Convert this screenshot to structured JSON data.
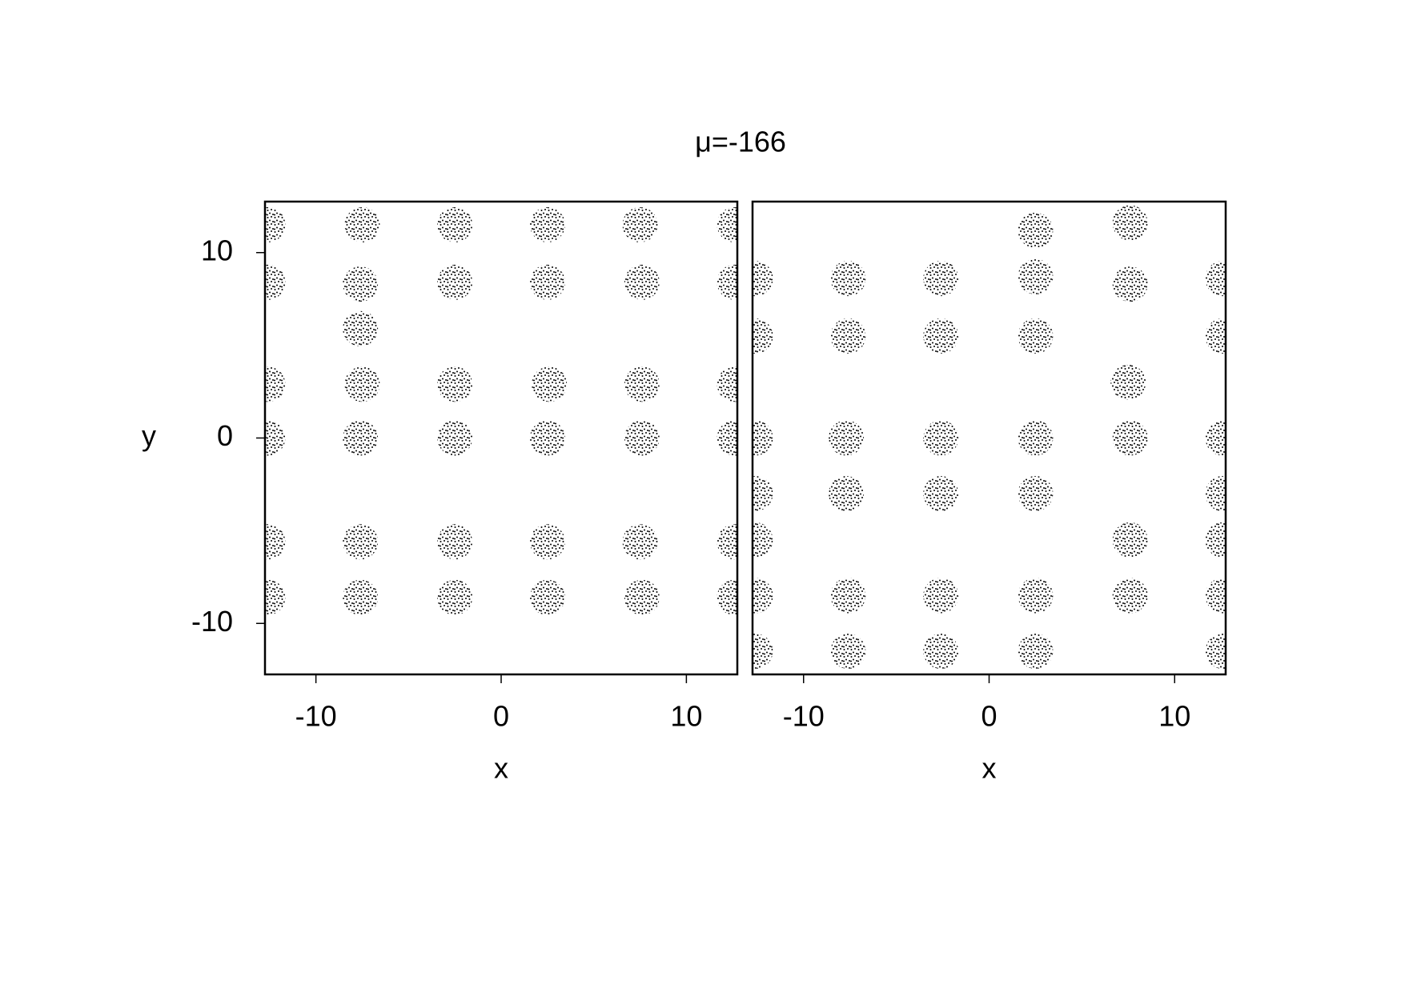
{
  "title": "μ=-166",
  "chart_data": [
    {
      "type": "scatter",
      "xlabel": "x",
      "ylabel": "y",
      "xlim": [
        -12.75,
        12.75
      ],
      "ylim": [
        -12.75,
        12.75
      ],
      "xticks": [
        -10,
        0,
        10
      ],
      "yticks": [
        -10,
        0,
        10
      ],
      "series": [
        {
          "color": "#9400d3",
          "x": [
            -12.6,
            -7.5,
            -2.5,
            2.5,
            7.5,
            12.6,
            -12.6,
            -2.5,
            2.5,
            7.6,
            12.6,
            -12.6,
            -7.5,
            -2.5,
            2.6,
            7.6,
            12.6,
            -12.6,
            -7.6,
            -2.5,
            2.5,
            7.6,
            12.6,
            -12.6,
            -7.6,
            -2.5,
            2.5,
            7.5,
            12.6,
            -12.6,
            -7.6,
            -2.5,
            2.5,
            7.6,
            12.6
          ],
          "y": [
            11.5,
            11.5,
            11.5,
            11.5,
            11.5,
            11.5,
            8.4,
            8.4,
            8.4,
            8.4,
            8.4,
            2.9,
            2.9,
            2.9,
            2.9,
            2.9,
            2.9,
            0,
            0,
            0,
            0,
            0,
            0,
            -5.6,
            -5.6,
            -5.6,
            -5.6,
            -5.6,
            -5.6,
            -8.6,
            -8.6,
            -8.6,
            -8.6,
            -8.6,
            -8.6
          ]
        },
        {
          "color": "#ff0000",
          "x": [
            -7.6,
            -7.6
          ],
          "y": [
            8.3,
            5.9
          ]
        }
      ]
    },
    {
      "type": "scatter",
      "xlabel": "x",
      "xlim": [
        -12.75,
        12.75
      ],
      "ylim": [
        -12.75,
        12.75
      ],
      "xticks": [
        -10,
        0,
        10
      ],
      "series": [
        {
          "color": "#9400d3",
          "x": [
            7.6,
            -12.6,
            -7.6,
            -2.6,
            7.6,
            12.6,
            -12.6,
            -7.6,
            -2.6,
            2.5,
            12.6,
            7.5,
            -12.6,
            -7.7,
            -2.6,
            2.5,
            7.6,
            12.6,
            -7.7,
            -2.6,
            2.5,
            7.6,
            -12.6,
            -7.6,
            -2.6,
            2.5,
            7.6,
            12.6,
            -12.6,
            -7.6,
            -2.6,
            2.5,
            12.6
          ],
          "y": [
            11.6,
            8.6,
            8.6,
            8.6,
            8.3,
            8.6,
            5.5,
            5.5,
            5.5,
            5.5,
            5.5,
            3.0,
            0,
            0,
            0,
            0,
            0,
            0,
            -3.0,
            -3.0,
            -3.0,
            -5.5,
            -8.5,
            -8.5,
            -8.5,
            -8.5,
            -8.5,
            -8.5,
            -11.5,
            -11.5,
            -11.5,
            -11.5,
            -11.5
          ]
        },
        {
          "color": "#ff0000",
          "x": [
            2.5,
            2.5,
            -12.6,
            -12.6,
            12.6,
            12.6
          ],
          "y": [
            8.7,
            11.2,
            -3.0,
            -5.5,
            -3.0,
            -5.5
          ]
        }
      ]
    }
  ]
}
